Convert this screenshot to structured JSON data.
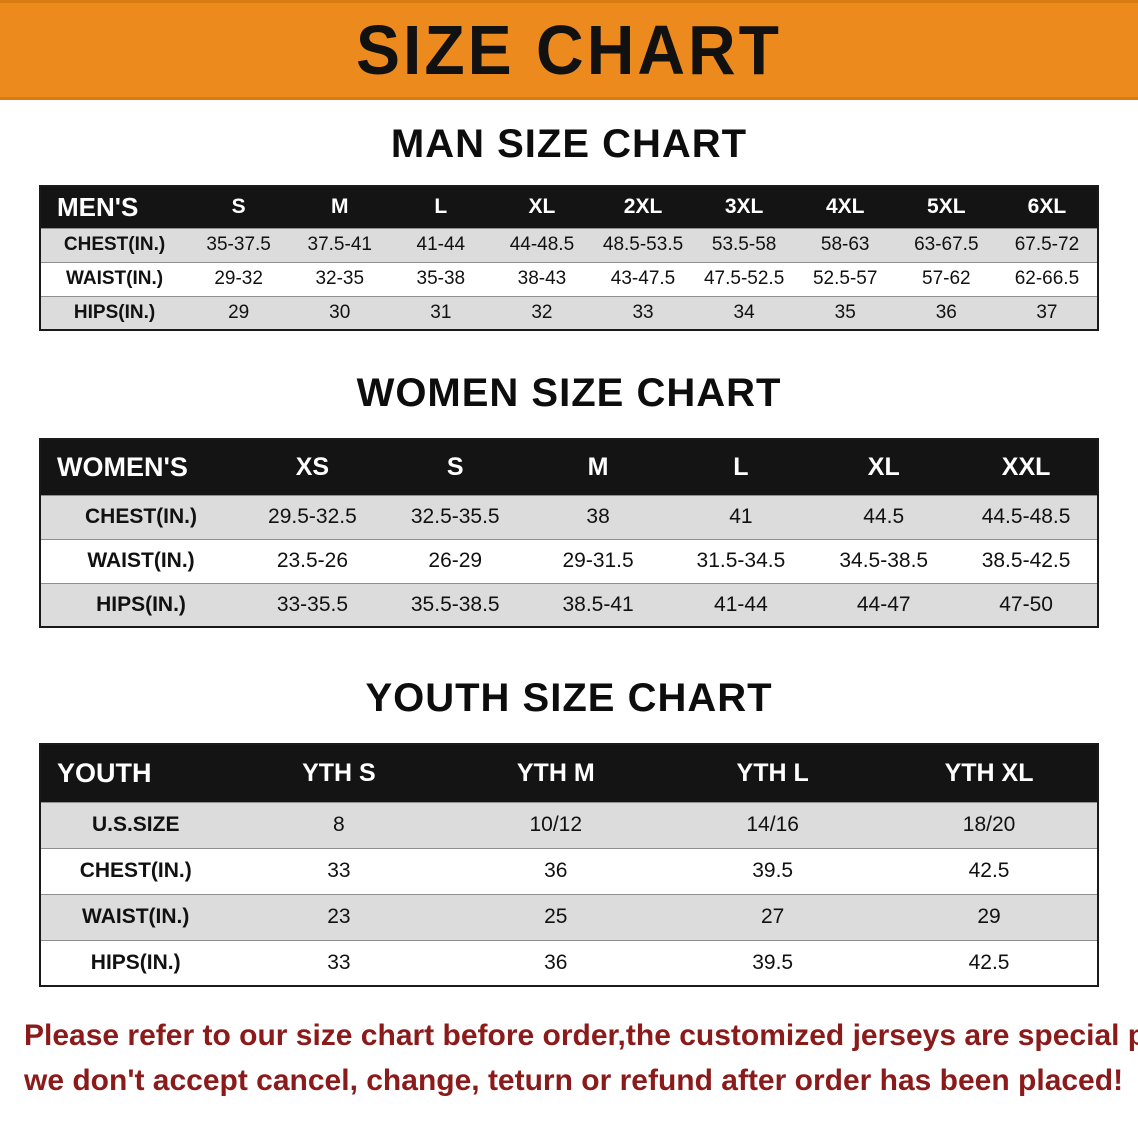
{
  "banner": {
    "title": "SIZE CHART",
    "background": "#ED8A1D",
    "text_color": "#111111"
  },
  "sections": [
    {
      "heading": "MAN SIZE CHART",
      "table": {
        "header": [
          "MEN'S",
          "S",
          "M",
          "L",
          "XL",
          "2XL",
          "3XL",
          "4XL",
          "5XL",
          "6XL"
        ],
        "rows": [
          [
            "CHEST(IN.)",
            "35-37.5",
            "37.5-41",
            "41-44",
            "44-48.5",
            "48.5-53.5",
            "53.5-58",
            "58-63",
            "63-67.5",
            "67.5-72"
          ],
          [
            "WAIST(IN.)",
            "29-32",
            "32-35",
            "35-38",
            "38-43",
            "43-47.5",
            "47.5-52.5",
            "52.5-57",
            "57-62",
            "62-66.5"
          ],
          [
            "HIPS(IN.)",
            "29",
            "30",
            "31",
            "32",
            "33",
            "34",
            "35",
            "36",
            "37"
          ]
        ]
      }
    },
    {
      "heading": "WOMEN SIZE CHART",
      "table": {
        "header": [
          "WOMEN'S",
          "XS",
          "S",
          "M",
          "L",
          "XL",
          "XXL"
        ],
        "rows": [
          [
            "CHEST(IN.)",
            "29.5-32.5",
            "32.5-35.5",
            "38",
            "41",
            "44.5",
            "44.5-48.5"
          ],
          [
            "WAIST(IN.)",
            "23.5-26",
            "26-29",
            "29-31.5",
            "31.5-34.5",
            "34.5-38.5",
            "38.5-42.5"
          ],
          [
            "HIPS(IN.)",
            "33-35.5",
            "35.5-38.5",
            "38.5-41",
            "41-44",
            "44-47",
            "47-50"
          ]
        ]
      }
    },
    {
      "heading": "YOUTH SIZE CHART",
      "table": {
        "header": [
          "YOUTH",
          "YTH S",
          "YTH M",
          "YTH L",
          "YTH XL"
        ],
        "rows": [
          [
            "U.S.SIZE",
            "8",
            "10/12",
            "14/16",
            "18/20"
          ],
          [
            "CHEST(IN.)",
            "33",
            "36",
            "39.5",
            "42.5"
          ],
          [
            "WAIST(IN.)",
            "23",
            "25",
            "27",
            "29"
          ],
          [
            "HIPS(IN.)",
            "33",
            "36",
            "39.5",
            "42.5"
          ]
        ]
      }
    }
  ],
  "footer": {
    "text_color": "#8B1A1A",
    "lines": [
      "Please refer to our size chart before order,the customized jerseys are special products,",
      "we don't accept cancel, change, teturn or refund after order has been placed!"
    ]
  }
}
